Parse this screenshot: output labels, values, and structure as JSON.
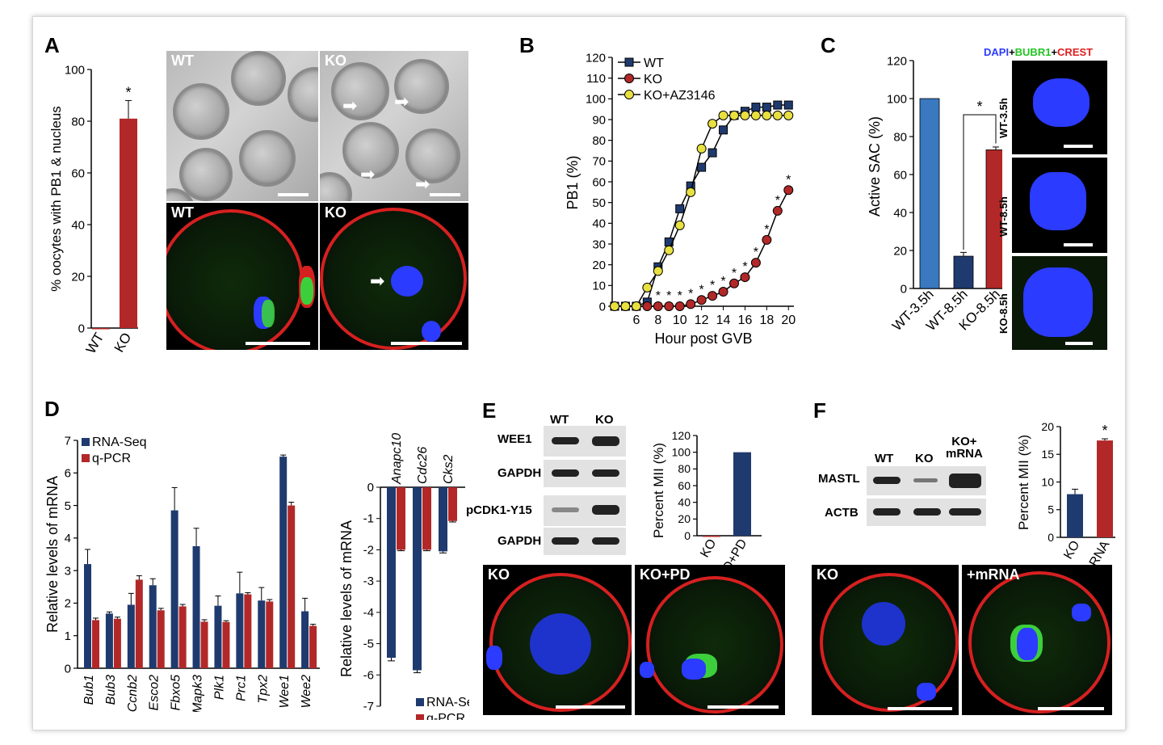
{
  "panels": {
    "A": {
      "label": "A",
      "ylabel": "% oocytes with PB1 & nucleus",
      "bright_wt": "WT",
      "bright_ko": "KO",
      "fluor_wt": "WT",
      "fluor_ko": "KO"
    },
    "B": {
      "label": "B",
      "xlabel": "Hour post GVB",
      "ylabel": "PB1 (%)"
    },
    "C": {
      "label": "C",
      "ylabel": "Active SAC (%)",
      "stain_dapi": "DAPI",
      "stain_plus1": "+",
      "stain_bubr1": "BUBR1",
      "stain_plus2": "+",
      "stain_crest": "CREST",
      "img1": "WT-3.5h",
      "img2": "WT-8.5h",
      "img3": "KO-8.5h",
      "colors": {
        "dapi": "#2b3bff",
        "bubr1": "#22c422",
        "crest": "#e02020"
      }
    },
    "D": {
      "label": "D",
      "ylabel": "Relative levels of mRNA",
      "ylabel2": "Relative levels of mRNA"
    },
    "E": {
      "label": "E",
      "blot_wt": "WT",
      "blot_ko": "KO",
      "rows": [
        "WEE1",
        "GAPDH",
        "pCDK1-Y15",
        "GAPDH"
      ],
      "ylabel": "Percent MII (%)",
      "img1": "KO",
      "img2": "KO+PD"
    },
    "F": {
      "label": "F",
      "blot_wt": "WT",
      "blot_ko": "KO",
      "blot_ko_mrna": "KO+\nmRNA",
      "rows": [
        "MASTL",
        "ACTB"
      ],
      "ylabel": "Percent MII (%)",
      "img1": "KO",
      "img2": "+mRNA"
    }
  },
  "chart_data": [
    {
      "id": "A",
      "type": "bar",
      "categories": [
        "WT",
        "KO"
      ],
      "values": [
        0,
        81
      ],
      "errors": [
        0,
        7
      ],
      "ylabel": "% oocytes with PB1 & nucleus",
      "ylim": [
        0,
        100
      ],
      "yticks": [
        0,
        20,
        40,
        60,
        80,
        100
      ],
      "colors": [
        "#b22828",
        "#b22828"
      ],
      "annotations": [
        "",
        "*"
      ]
    },
    {
      "id": "B",
      "type": "line",
      "xlabel": "Hour post GVB",
      "ylabel": "PB1 (%)",
      "xlim": [
        4,
        20.5
      ],
      "ylim": [
        0,
        120
      ],
      "xticks": [
        6,
        8,
        10,
        12,
        14,
        16,
        18,
        20
      ],
      "yticks": [
        0,
        10,
        20,
        30,
        40,
        50,
        60,
        70,
        80,
        90,
        100,
        110,
        120
      ],
      "legend_position": "top-left",
      "series": [
        {
          "name": "WT",
          "marker": "square",
          "color": "#1f3a6e",
          "x": [
            4,
            5,
            6,
            7,
            8,
            9,
            10,
            11,
            12,
            13,
            14,
            15,
            16,
            17,
            18,
            19,
            20
          ],
          "y": [
            0,
            0,
            0,
            2,
            19,
            31,
            47,
            58,
            67,
            74,
            85,
            92,
            94,
            96,
            96,
            97,
            97
          ]
        },
        {
          "name": "KO",
          "marker": "circle",
          "color": "#b22828",
          "x": [
            4,
            5,
            6,
            7,
            8,
            9,
            10,
            11,
            12,
            13,
            14,
            15,
            16,
            17,
            18,
            19,
            20
          ],
          "y": [
            0,
            0,
            0,
            0,
            0,
            0,
            0,
            1,
            3,
            5,
            7,
            11,
            14,
            21,
            32,
            46,
            56
          ]
        },
        {
          "name": "KO+AZ3146",
          "marker": "circle",
          "color": "#e8e040",
          "x": [
            4,
            5,
            6,
            7,
            8,
            9,
            10,
            11,
            12,
            13,
            14,
            15,
            16,
            17,
            18,
            19,
            20
          ],
          "y": [
            0,
            0,
            0,
            9,
            17,
            27,
            39,
            55,
            76,
            88,
            92,
            92,
            92,
            92,
            92,
            92,
            92
          ]
        }
      ],
      "annotations": [
        "*",
        "*",
        "*",
        "*",
        "*",
        "*",
        "*",
        "*",
        "*",
        "*",
        "*",
        "*",
        "*"
      ]
    },
    {
      "id": "C",
      "type": "bar",
      "categories": [
        "WT-3.5h",
        "WT-8.5h",
        "KO-8.5h"
      ],
      "values": [
        100,
        17,
        73
      ],
      "errors": [
        0,
        2,
        1.5
      ],
      "ylabel": "Active SAC (%)",
      "ylim": [
        0,
        120
      ],
      "yticks": [
        0,
        20,
        40,
        60,
        80,
        100,
        120
      ],
      "colors": [
        "#3a78c0",
        "#1f3a6e",
        "#b22828"
      ],
      "annotations": [
        "*"
      ]
    },
    {
      "id": "D1",
      "type": "bar",
      "categories": [
        "Bub1",
        "Bub3",
        "Ccnb2",
        "Esco2",
        "Fbxo5",
        "Mapk3",
        "Plk1",
        "Prc1",
        "Tpx2",
        "Wee1",
        "Wee2"
      ],
      "ylabel": "Relative levels of mRNA",
      "ylim": [
        0,
        7
      ],
      "yticks": [
        0,
        1,
        2,
        3,
        4,
        5,
        6,
        7
      ],
      "legend_position": "top-left",
      "series": [
        {
          "name": "RNA-Seq",
          "color": "#1f3a6e",
          "values": [
            3.2,
            1.68,
            1.95,
            2.55,
            4.85,
            3.75,
            1.92,
            2.3,
            2.08,
            6.5,
            1.75
          ],
          "errors": [
            0.45,
            0.05,
            0.35,
            0.2,
            0.7,
            0.55,
            0.3,
            0.65,
            0.4,
            0.05,
            0.4
          ]
        },
        {
          "name": "q-PCR",
          "color": "#b22828",
          "values": [
            1.48,
            1.52,
            2.72,
            1.78,
            1.9,
            1.43,
            1.42,
            2.27,
            2.05,
            5.0,
            1.3
          ],
          "errors": [
            0.06,
            0.05,
            0.12,
            0.06,
            0.06,
            0.06,
            0.04,
            0.05,
            0.06,
            0.1,
            0.05
          ]
        }
      ]
    },
    {
      "id": "D2",
      "type": "bar",
      "categories": [
        "Anapc10",
        "Cdc26",
        "Cks2"
      ],
      "ylabel": "Relative levels of mRNA",
      "ylim": [
        -7,
        0
      ],
      "yticks": [
        0,
        -1,
        -2,
        -3,
        -4,
        -5,
        -6,
        -7
      ],
      "legend_position": "bottom-left",
      "series": [
        {
          "name": "RNA-Seq",
          "color": "#1f3a6e",
          "values": [
            -5.45,
            -5.85,
            -2.05
          ],
          "errors": [
            0.1,
            0.08,
            0.05
          ]
        },
        {
          "name": "q-PCR",
          "color": "#b22828",
          "values": [
            -2.0,
            -2.0,
            -1.08
          ],
          "errors": [
            0.03,
            0.03,
            0.03
          ]
        }
      ]
    },
    {
      "id": "E",
      "type": "bar",
      "categories": [
        "KO",
        "KO+PD"
      ],
      "values": [
        0,
        100
      ],
      "ylabel": "Percent MII (%)",
      "ylim": [
        0,
        120
      ],
      "yticks": [
        0,
        20,
        40,
        60,
        80,
        100,
        120
      ],
      "colors": [
        "#b22828",
        "#1f3a6e"
      ]
    },
    {
      "id": "F",
      "type": "bar",
      "categories": [
        "KO",
        "+mRNA"
      ],
      "values": [
        7.8,
        17.5
      ],
      "errors": [
        0.9,
        0.3
      ],
      "ylabel": "Percent MII (%)",
      "ylim": [
        0,
        20
      ],
      "yticks": [
        0,
        5,
        10,
        15,
        20
      ],
      "colors": [
        "#1f3a6e",
        "#b22828"
      ],
      "annotations": [
        "*"
      ]
    }
  ]
}
